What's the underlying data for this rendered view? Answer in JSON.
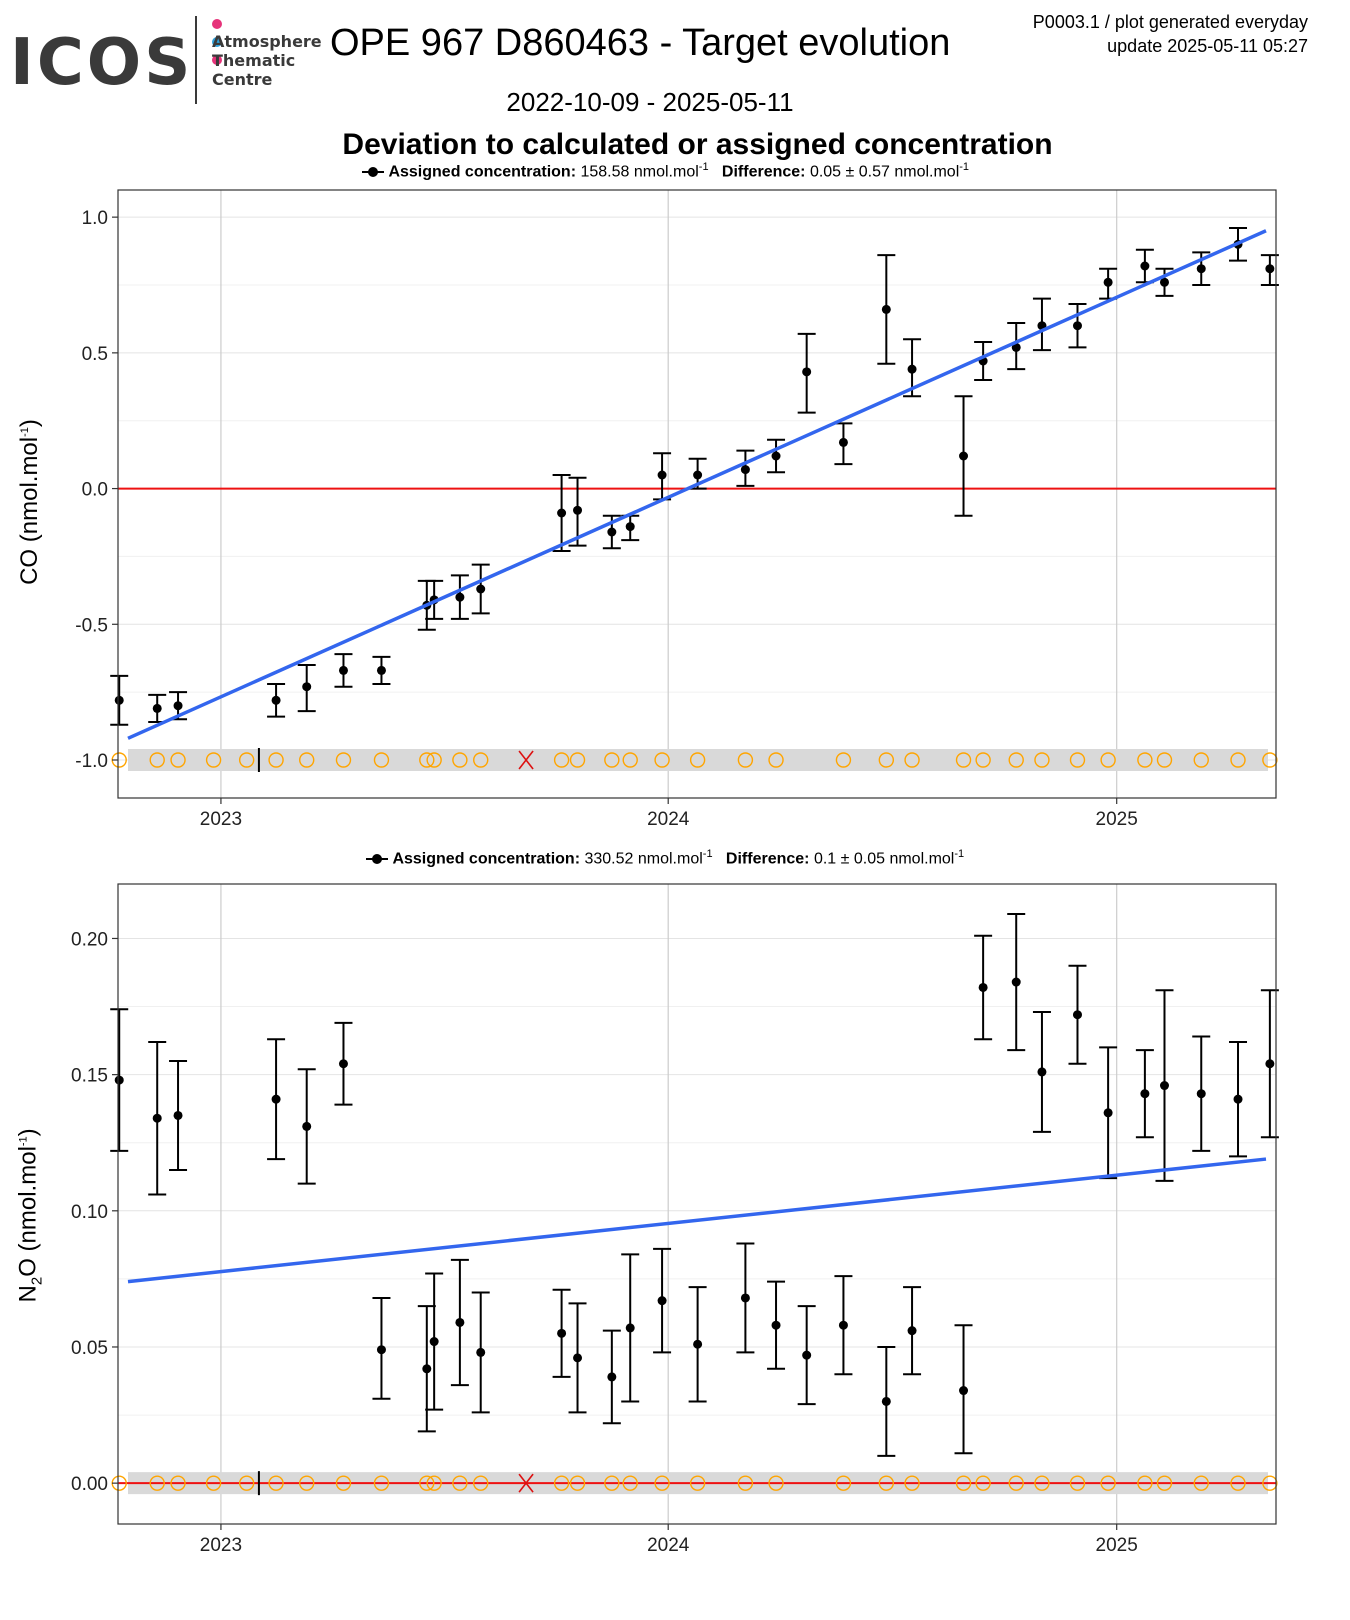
{
  "header": {
    "logo_text": "ICOS",
    "logo_subtitle": "Atmosphere\nThematic\nCentre",
    "logo_dot_colors": [
      "#e6337a",
      "#2e9fd9",
      "#e6337a"
    ],
    "title": "OPE 967 D860463 - Target evolution",
    "plot_id": "P0003.1 / plot generated everyday",
    "update": "update  2025-05-11 05:27",
    "date_range": "2022-10-09 - 2025-05-11",
    "section_title": "Deviation to calculated or assigned concentration"
  },
  "colors": {
    "points": "#000000",
    "trend": "#3366ee",
    "zero_line": "#ee1111",
    "marker_circle": "#ffa500",
    "marker_cross": "#dd1111",
    "band": "#d9d9d9"
  },
  "chart_data": [
    {
      "type": "scatter",
      "gas": "CO",
      "ylabel_main": "CO (nmol.mol",
      "ylabel_sup": "-1",
      "ylabel_end": ")",
      "legend": {
        "assigned_label": "Assigned concentration:",
        "assigned_value": "158.58 nmol.mol",
        "difference_label": "Difference:",
        "difference_value": "0.05 ± 0.57 nmol.mol",
        "unit_sup": "-1"
      },
      "xlim": [
        "2022-10-09",
        "2025-05-11"
      ],
      "ylim": [
        -1.14,
        1.1
      ],
      "yticks": [
        -1.0,
        -0.5,
        0.0,
        0.5,
        1.0
      ],
      "ytick_labels": [
        "-1.0",
        "-0.5",
        "0.0",
        "0.5",
        "1.0"
      ],
      "xticks": [
        "2023-01-01",
        "2024-01-01",
        "2025-01-01"
      ],
      "xtick_labels": [
        "2023",
        "2024",
        "2025"
      ],
      "zero_line": 0.0,
      "trend": {
        "x": [
          "2022-10-09",
          "2025-05-11"
        ],
        "y": [
          -0.92,
          0.95
        ]
      },
      "band_y": -1.0,
      "points": [
        {
          "x": "2022-10-10",
          "y": -0.78,
          "lo": -0.87,
          "hi": -0.69
        },
        {
          "x": "2022-11-10",
          "y": -0.81,
          "lo": -0.86,
          "hi": -0.76
        },
        {
          "x": "2022-11-27",
          "y": -0.8,
          "lo": -0.85,
          "hi": -0.75
        },
        {
          "x": "2023-02-15",
          "y": -0.78,
          "lo": -0.84,
          "hi": -0.72
        },
        {
          "x": "2023-03-12",
          "y": -0.73,
          "lo": -0.82,
          "hi": -0.65
        },
        {
          "x": "2023-04-11",
          "y": -0.67,
          "lo": -0.73,
          "hi": -0.61
        },
        {
          "x": "2023-05-12",
          "y": -0.67,
          "lo": -0.72,
          "hi": -0.62
        },
        {
          "x": "2023-06-18",
          "y": -0.43,
          "lo": -0.52,
          "hi": -0.34
        },
        {
          "x": "2023-06-24",
          "y": -0.41,
          "lo": -0.48,
          "hi": -0.34
        },
        {
          "x": "2023-07-15",
          "y": -0.4,
          "lo": -0.48,
          "hi": -0.32
        },
        {
          "x": "2023-08-01",
          "y": -0.37,
          "lo": -0.46,
          "hi": -0.28
        },
        {
          "x": "2023-10-06",
          "y": -0.09,
          "lo": -0.23,
          "hi": 0.05
        },
        {
          "x": "2023-10-19",
          "y": -0.08,
          "lo": -0.21,
          "hi": 0.04
        },
        {
          "x": "2023-11-16",
          "y": -0.16,
          "lo": -0.22,
          "hi": -0.1
        },
        {
          "x": "2023-12-01",
          "y": -0.14,
          "lo": -0.19,
          "hi": -0.1
        },
        {
          "x": "2023-12-27",
          "y": 0.05,
          "lo": -0.04,
          "hi": 0.13
        },
        {
          "x": "2024-01-25",
          "y": 0.05,
          "lo": 0.0,
          "hi": 0.11
        },
        {
          "x": "2024-03-04",
          "y": 0.07,
          "lo": 0.01,
          "hi": 0.14
        },
        {
          "x": "2024-03-29",
          "y": 0.12,
          "lo": 0.06,
          "hi": 0.18
        },
        {
          "x": "2024-04-23",
          "y": 0.43,
          "lo": 0.28,
          "hi": 0.57
        },
        {
          "x": "2024-05-23",
          "y": 0.17,
          "lo": 0.09,
          "hi": 0.24
        },
        {
          "x": "2024-06-27",
          "y": 0.66,
          "lo": 0.46,
          "hi": 0.86
        },
        {
          "x": "2024-07-18",
          "y": 0.44,
          "lo": 0.34,
          "hi": 0.55
        },
        {
          "x": "2024-08-29",
          "y": 0.12,
          "lo": -0.1,
          "hi": 0.34
        },
        {
          "x": "2024-09-14",
          "y": 0.47,
          "lo": 0.4,
          "hi": 0.54
        },
        {
          "x": "2024-10-11",
          "y": 0.52,
          "lo": 0.44,
          "hi": 0.61
        },
        {
          "x": "2024-11-01",
          "y": 0.6,
          "lo": 0.51,
          "hi": 0.7
        },
        {
          "x": "2024-11-30",
          "y": 0.6,
          "lo": 0.52,
          "hi": 0.68
        },
        {
          "x": "2024-12-25",
          "y": 0.76,
          "lo": 0.7,
          "hi": 0.81
        },
        {
          "x": "2025-01-24",
          "y": 0.82,
          "lo": 0.76,
          "hi": 0.88
        },
        {
          "x": "2025-02-09",
          "y": 0.76,
          "lo": 0.71,
          "hi": 0.81
        },
        {
          "x": "2025-03-11",
          "y": 0.81,
          "lo": 0.75,
          "hi": 0.87
        },
        {
          "x": "2025-04-10",
          "y": 0.9,
          "lo": 0.84,
          "hi": 0.96
        },
        {
          "x": "2025-05-06",
          "y": 0.81,
          "lo": 0.75,
          "hi": 0.86
        }
      ],
      "band_circles": [
        "2022-10-10",
        "2022-11-10",
        "2022-11-27",
        "2022-12-26",
        "2023-01-22",
        "2023-02-15",
        "2023-03-12",
        "2023-04-11",
        "2023-05-12",
        "2023-06-18",
        "2023-06-24",
        "2023-07-15",
        "2023-08-01",
        "2023-10-06",
        "2023-10-19",
        "2023-11-16",
        "2023-12-01",
        "2023-12-27",
        "2024-01-25",
        "2024-03-04",
        "2024-03-29",
        "2024-05-23",
        "2024-06-27",
        "2024-07-18",
        "2024-08-29",
        "2024-09-14",
        "2024-10-11",
        "2024-11-01",
        "2024-11-30",
        "2024-12-25",
        "2025-01-24",
        "2025-02-09",
        "2025-03-11",
        "2025-04-10",
        "2025-05-06"
      ],
      "band_ticks": [
        "2023-02-01"
      ],
      "band_crosses": [
        "2023-09-07"
      ]
    },
    {
      "type": "scatter",
      "gas": "N2O",
      "ylabel_main": "N",
      "ylabel_sub": "2",
      "ylabel_mid": "O (nmol.mol",
      "ylabel_sup": "-1",
      "ylabel_end": ")",
      "legend": {
        "assigned_label": "Assigned concentration:",
        "assigned_value": "330.52 nmol.mol",
        "difference_label": "Difference:",
        "difference_value": "0.1 ± 0.05 nmol.mol",
        "unit_sup": "-1"
      },
      "xlim": [
        "2022-10-09",
        "2025-05-11"
      ],
      "ylim": [
        -0.015,
        0.22
      ],
      "yticks": [
        0.0,
        0.05,
        0.1,
        0.15,
        0.2
      ],
      "ytick_labels": [
        "0.00",
        "0.05",
        "0.10",
        "0.15",
        "0.20"
      ],
      "xticks": [
        "2023-01-01",
        "2024-01-01",
        "2025-01-01"
      ],
      "xtick_labels": [
        "2023",
        "2024",
        "2025"
      ],
      "zero_line": 0.0,
      "trend": {
        "x": [
          "2022-10-09",
          "2025-05-11"
        ],
        "y": [
          0.074,
          0.119
        ]
      },
      "band_y": 0.0,
      "points": [
        {
          "x": "2022-10-10",
          "y": 0.148,
          "lo": 0.122,
          "hi": 0.174
        },
        {
          "x": "2022-11-10",
          "y": 0.134,
          "lo": 0.106,
          "hi": 0.162
        },
        {
          "x": "2022-11-27",
          "y": 0.135,
          "lo": 0.115,
          "hi": 0.155
        },
        {
          "x": "2023-02-15",
          "y": 0.141,
          "lo": 0.119,
          "hi": 0.163
        },
        {
          "x": "2023-03-12",
          "y": 0.131,
          "lo": 0.11,
          "hi": 0.152
        },
        {
          "x": "2023-04-11",
          "y": 0.154,
          "lo": 0.139,
          "hi": 0.169
        },
        {
          "x": "2023-05-12",
          "y": 0.049,
          "lo": 0.031,
          "hi": 0.068
        },
        {
          "x": "2023-06-18",
          "y": 0.042,
          "lo": 0.019,
          "hi": 0.065
        },
        {
          "x": "2023-06-24",
          "y": 0.052,
          "lo": 0.027,
          "hi": 0.077
        },
        {
          "x": "2023-07-15",
          "y": 0.059,
          "lo": 0.036,
          "hi": 0.082
        },
        {
          "x": "2023-08-01",
          "y": 0.048,
          "lo": 0.026,
          "hi": 0.07
        },
        {
          "x": "2023-10-06",
          "y": 0.055,
          "lo": 0.039,
          "hi": 0.071
        },
        {
          "x": "2023-10-19",
          "y": 0.046,
          "lo": 0.026,
          "hi": 0.066
        },
        {
          "x": "2023-11-16",
          "y": 0.039,
          "lo": 0.022,
          "hi": 0.056
        },
        {
          "x": "2023-12-01",
          "y": 0.057,
          "lo": 0.03,
          "hi": 0.084
        },
        {
          "x": "2023-12-27",
          "y": 0.067,
          "lo": 0.048,
          "hi": 0.086
        },
        {
          "x": "2024-01-25",
          "y": 0.051,
          "lo": 0.03,
          "hi": 0.072
        },
        {
          "x": "2024-03-04",
          "y": 0.068,
          "lo": 0.048,
          "hi": 0.088
        },
        {
          "x": "2024-03-29",
          "y": 0.058,
          "lo": 0.042,
          "hi": 0.074
        },
        {
          "x": "2024-04-23",
          "y": 0.047,
          "lo": 0.029,
          "hi": 0.065
        },
        {
          "x": "2024-05-23",
          "y": 0.058,
          "lo": 0.04,
          "hi": 0.076
        },
        {
          "x": "2024-06-27",
          "y": 0.03,
          "lo": 0.01,
          "hi": 0.05
        },
        {
          "x": "2024-07-18",
          "y": 0.056,
          "lo": 0.04,
          "hi": 0.072
        },
        {
          "x": "2024-08-29",
          "y": 0.034,
          "lo": 0.011,
          "hi": 0.058
        },
        {
          "x": "2024-09-14",
          "y": 0.182,
          "lo": 0.163,
          "hi": 0.201
        },
        {
          "x": "2024-10-11",
          "y": 0.184,
          "lo": 0.159,
          "hi": 0.209
        },
        {
          "x": "2024-11-01",
          "y": 0.151,
          "lo": 0.129,
          "hi": 0.173
        },
        {
          "x": "2024-11-30",
          "y": 0.172,
          "lo": 0.154,
          "hi": 0.19
        },
        {
          "x": "2024-12-25",
          "y": 0.136,
          "lo": 0.112,
          "hi": 0.16
        },
        {
          "x": "2025-01-24",
          "y": 0.143,
          "lo": 0.127,
          "hi": 0.159
        },
        {
          "x": "2025-02-09",
          "y": 0.146,
          "lo": 0.111,
          "hi": 0.181
        },
        {
          "x": "2025-03-11",
          "y": 0.143,
          "lo": 0.122,
          "hi": 0.164
        },
        {
          "x": "2025-04-10",
          "y": 0.141,
          "lo": 0.12,
          "hi": 0.162
        },
        {
          "x": "2025-05-06",
          "y": 0.154,
          "lo": 0.127,
          "hi": 0.181
        }
      ],
      "band_circles": [
        "2022-10-10",
        "2022-11-10",
        "2022-11-27",
        "2022-12-26",
        "2023-01-22",
        "2023-02-15",
        "2023-03-12",
        "2023-04-11",
        "2023-05-12",
        "2023-06-18",
        "2023-06-24",
        "2023-07-15",
        "2023-08-01",
        "2023-10-06",
        "2023-10-19",
        "2023-11-16",
        "2023-12-01",
        "2023-12-27",
        "2024-01-25",
        "2024-03-04",
        "2024-03-29",
        "2024-05-23",
        "2024-06-27",
        "2024-07-18",
        "2024-08-29",
        "2024-09-14",
        "2024-10-11",
        "2024-11-01",
        "2024-11-30",
        "2024-12-25",
        "2025-01-24",
        "2025-02-09",
        "2025-03-11",
        "2025-04-10",
        "2025-05-06"
      ],
      "band_ticks": [
        "2023-02-01"
      ],
      "band_crosses": [
        "2023-09-07"
      ]
    }
  ]
}
